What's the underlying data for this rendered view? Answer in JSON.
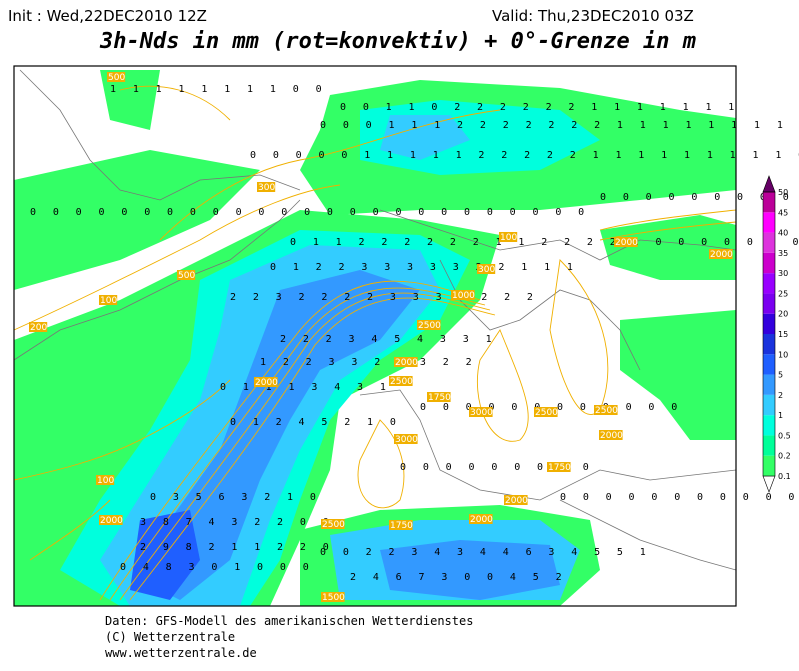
{
  "header": {
    "init": "Init : Wed,22DEC2010 12Z",
    "valid": "Valid: Thu,23DEC2010 03Z",
    "title": "3h-Nds in mm (rot=konvektiv) + 0°-Grenze in m"
  },
  "map": {
    "digit_rows": [
      "1 1 1 1 1 1 1 1 0 0",
      "0 0 1 1 0 2 2 2 2 2 2 1 1 1 1 1 1 1",
      "0 0 0 1 1 1 2 2 2 2 2 2 2 1 1 1 1 1 1 1 1 1 0",
      "0 0 0 0 0 1 1 1 1 1 2 2 2 2 2 1 1 1 1 1 1 1 1 1 0 0 0",
      "0 0 0 0 0 0 0 0 0 0 0 0 0 0 0 0 0 0 0 0 0 0 0 0 0",
      "0 1 1 2 2 2 2 2 2 1 1 2 2 2 2 1 0 0 0 0 0 0 0 0",
      "0 1 2 2 3 3 3 3 3 2 2 1 1 1",
      "2 2 3 2 2 2 2 3 3 3 3 2 2 2",
      "2 2 2 3 4 5 4 3 3 1",
      "1 2 2 3 3 2 2 3 2 2",
      "0 1 1 1 3 4 3 1",
      "0 1 2 4 5 2 1 0",
      "0 3 5 6 3 2 1 0",
      "3 8 7 4 3 2 2 0 0",
      "2 9 8 2 1 1 2 2 0",
      "0 4 8 3 0 1 0 0 0",
      "0 0 2 2 3 4 3 4 4 6 3 4 5 5 1",
      "2 4 6 7 3 0 0 4 5 2",
      "0 0 0 0 0 0 0 0 0 0 0 0",
      "0 0 0 0 0 0 0 0 0",
      "0 0 0 0 0 0 0 0 0 0 0",
      "0 0 0 0 0 0 0 0 0 0 0 0 0"
    ],
    "contour_labels": [
      "500",
      "300",
      "500",
      "100",
      "200",
      "100",
      "2000",
      "1000",
      "2500",
      "1750",
      "2000",
      "2500",
      "3000",
      "2500",
      "2000",
      "1750",
      "2000",
      "1750",
      "2000",
      "1500",
      "3000",
      "2500",
      "2000",
      "2500",
      "2000",
      "100",
      "300",
      "1000",
      "2000"
    ]
  },
  "legend": {
    "levels": [
      0.1,
      0.2,
      0.5,
      1,
      2,
      5,
      10,
      15,
      20,
      25,
      30,
      35,
      40,
      45,
      50
    ],
    "colors": [
      "#33ff66",
      "#00ff99",
      "#00ffdd",
      "#33ccff",
      "#3399ff",
      "#1f5fff",
      "#1a33dd",
      "#3300dd",
      "#7a00f0",
      "#9900ff",
      "#cc00cc",
      "#dd33dd",
      "#ff00ff",
      "#bb0099",
      "#880077",
      "#660066"
    ]
  },
  "footer": {
    "line1": "Daten: GFS-Modell des amerikanischen Wetterdienstes",
    "line2": "(C) Wetterzentrale",
    "line3": "www.wetterzentrale.de"
  }
}
